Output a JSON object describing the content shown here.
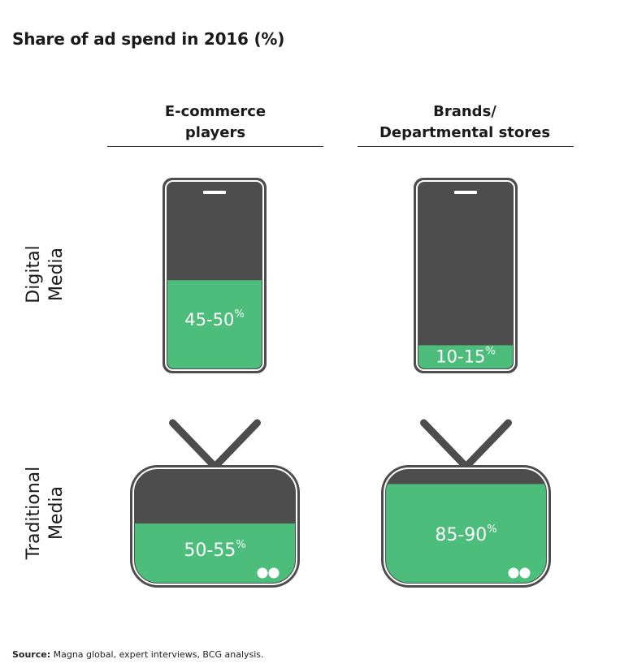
{
  "chart_data": {
    "type": "table",
    "title": "Share of ad spend in 2016 (%)",
    "columns": [
      {
        "label_lines": [
          "E-commerce",
          "players"
        ]
      },
      {
        "label_lines": [
          "Brands/",
          "Departmental stores"
        ]
      }
    ],
    "rows": [
      {
        "label_lines": [
          "Digital",
          "Media"
        ],
        "icon": "smartphone-icon"
      },
      {
        "label_lines": [
          "Traditional",
          "Media"
        ],
        "icon": "tv-icon"
      }
    ],
    "cells": [
      {
        "row": 0,
        "col": 0,
        "label": "45-50",
        "unit": "%",
        "value_low": 45,
        "value_high": 50
      },
      {
        "row": 0,
        "col": 1,
        "label": "10-15",
        "unit": "%",
        "value_low": 10,
        "value_high": 15
      },
      {
        "row": 1,
        "col": 0,
        "label": "50-55",
        "unit": "%",
        "value_low": 50,
        "value_high": 55
      },
      {
        "row": 1,
        "col": 1,
        "label": "85-90",
        "unit": "%",
        "value_low": 85,
        "value_high": 90
      }
    ],
    "colors": {
      "fill": "#4cbd7a",
      "body": "#4d4d4d",
      "outline": "#4d4d4d"
    }
  },
  "source": {
    "label": "Source:",
    "text": " Magna global, expert interviews, BCG analysis."
  }
}
